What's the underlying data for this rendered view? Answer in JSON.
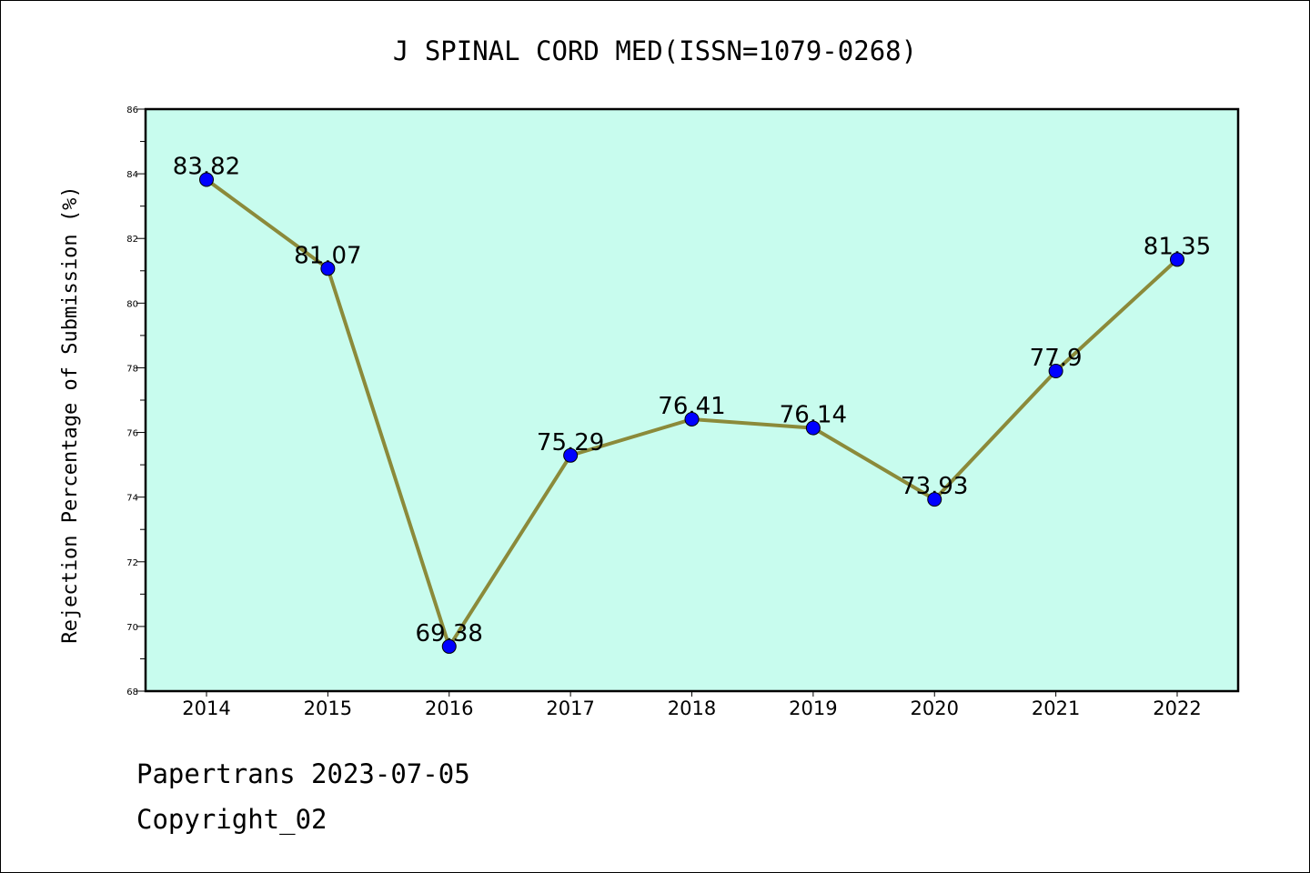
{
  "chart_data": {
    "type": "line",
    "title": "J SPINAL CORD MED(ISSN=1079-0268)",
    "xlabel": "",
    "ylabel": "Rejection Percentage of Submission (%)",
    "ylim": [
      68,
      86
    ],
    "ytick_labels": [
      "68",
      "70",
      "72",
      "74",
      "76",
      "78",
      "80",
      "82",
      "84",
      "86"
    ],
    "categories": [
      "2014",
      "2015",
      "2016",
      "2017",
      "2018",
      "2019",
      "2020",
      "2021",
      "2022"
    ],
    "series": [
      {
        "values": [
          83.82,
          81.07,
          69.38,
          75.29,
          76.41,
          76.14,
          73.93,
          77.9,
          81.35
        ],
        "labels": [
          "83.82",
          "81.07",
          "69.38",
          "75.29",
          "76.41",
          "76.14",
          "73.93",
          "77.9",
          "81.35"
        ]
      }
    ],
    "grid": false,
    "colors": {
      "plot_background": "#c8fcee",
      "line": "#8b8a3a",
      "marker": "#0000ff"
    }
  },
  "footer": {
    "source": "Papertrans 2023-07-05",
    "copyright": "Copyright_02"
  }
}
